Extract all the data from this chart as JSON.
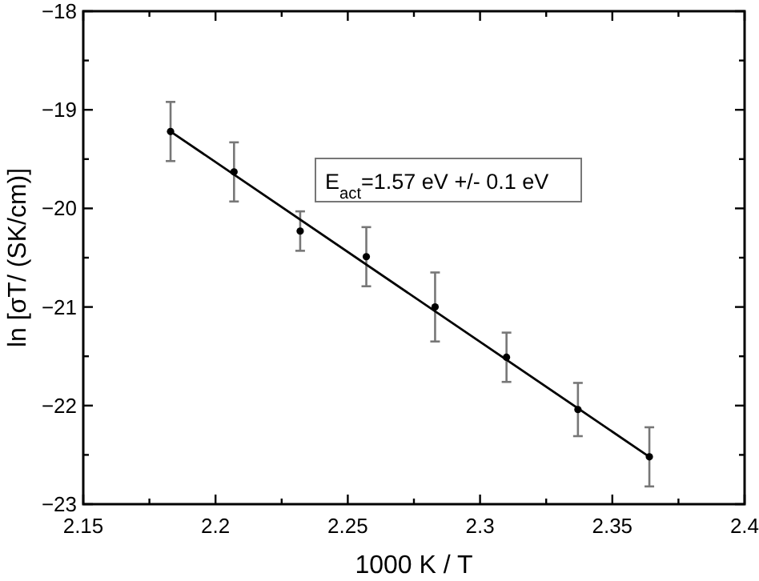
{
  "chart_data": {
    "type": "scatter",
    "xlabel": "1000 K / T",
    "ylabel": "ln [σT/ (SK/cm)]",
    "xlim": [
      2.15,
      2.4
    ],
    "ylim": [
      -23,
      -18
    ],
    "xticks": [
      2.15,
      {
        "value": 2.175,
        "label": null
      },
      {
        "value": 2.2,
        "label": "2.2"
      },
      {
        "value": 2.225,
        "label": null
      },
      2.25,
      {
        "value": 2.275,
        "label": null
      },
      {
        "value": 2.3,
        "label": "2.3"
      },
      {
        "value": 2.325,
        "label": null
      },
      2.35,
      {
        "value": 2.375,
        "label": null
      },
      {
        "value": 2.4,
        "label": "2.4"
      }
    ],
    "yticks": [
      {
        "value": -23,
        "label": "−23"
      },
      {
        "value": -22.5,
        "label": null
      },
      {
        "value": -22,
        "label": "−22"
      },
      {
        "value": -21.5,
        "label": null
      },
      {
        "value": -21,
        "label": "−21"
      },
      {
        "value": -20.5,
        "label": null
      },
      {
        "value": -20,
        "label": "−20"
      },
      {
        "value": -19.5,
        "label": null
      },
      {
        "value": -19,
        "label": "−19"
      },
      {
        "value": -18.5,
        "label": null
      },
      {
        "value": -18,
        "label": "−18"
      }
    ],
    "series": [
      {
        "color": "#000000",
        "marker": "circle",
        "x": [
          2.183,
          2.207,
          2.232,
          2.257,
          2.283,
          2.31,
          2.337,
          2.364
        ],
        "values": [
          -19.22,
          -19.63,
          -20.23,
          -20.49,
          -21.0,
          -21.51,
          -22.04,
          -22.52
        ],
        "errors": [
          0.3,
          0.3,
          0.2,
          0.3,
          0.35,
          0.25,
          0.27,
          0.3
        ]
      },
      {
        "type": "line",
        "color": "#000000",
        "x": [
          2.183,
          2.364
        ],
        "values": [
          -19.22,
          -22.52
        ]
      }
    ],
    "grid": false,
    "annotations": [
      "E$_{act}$=1.57 eV +/- 0.1 eV"
    ]
  }
}
